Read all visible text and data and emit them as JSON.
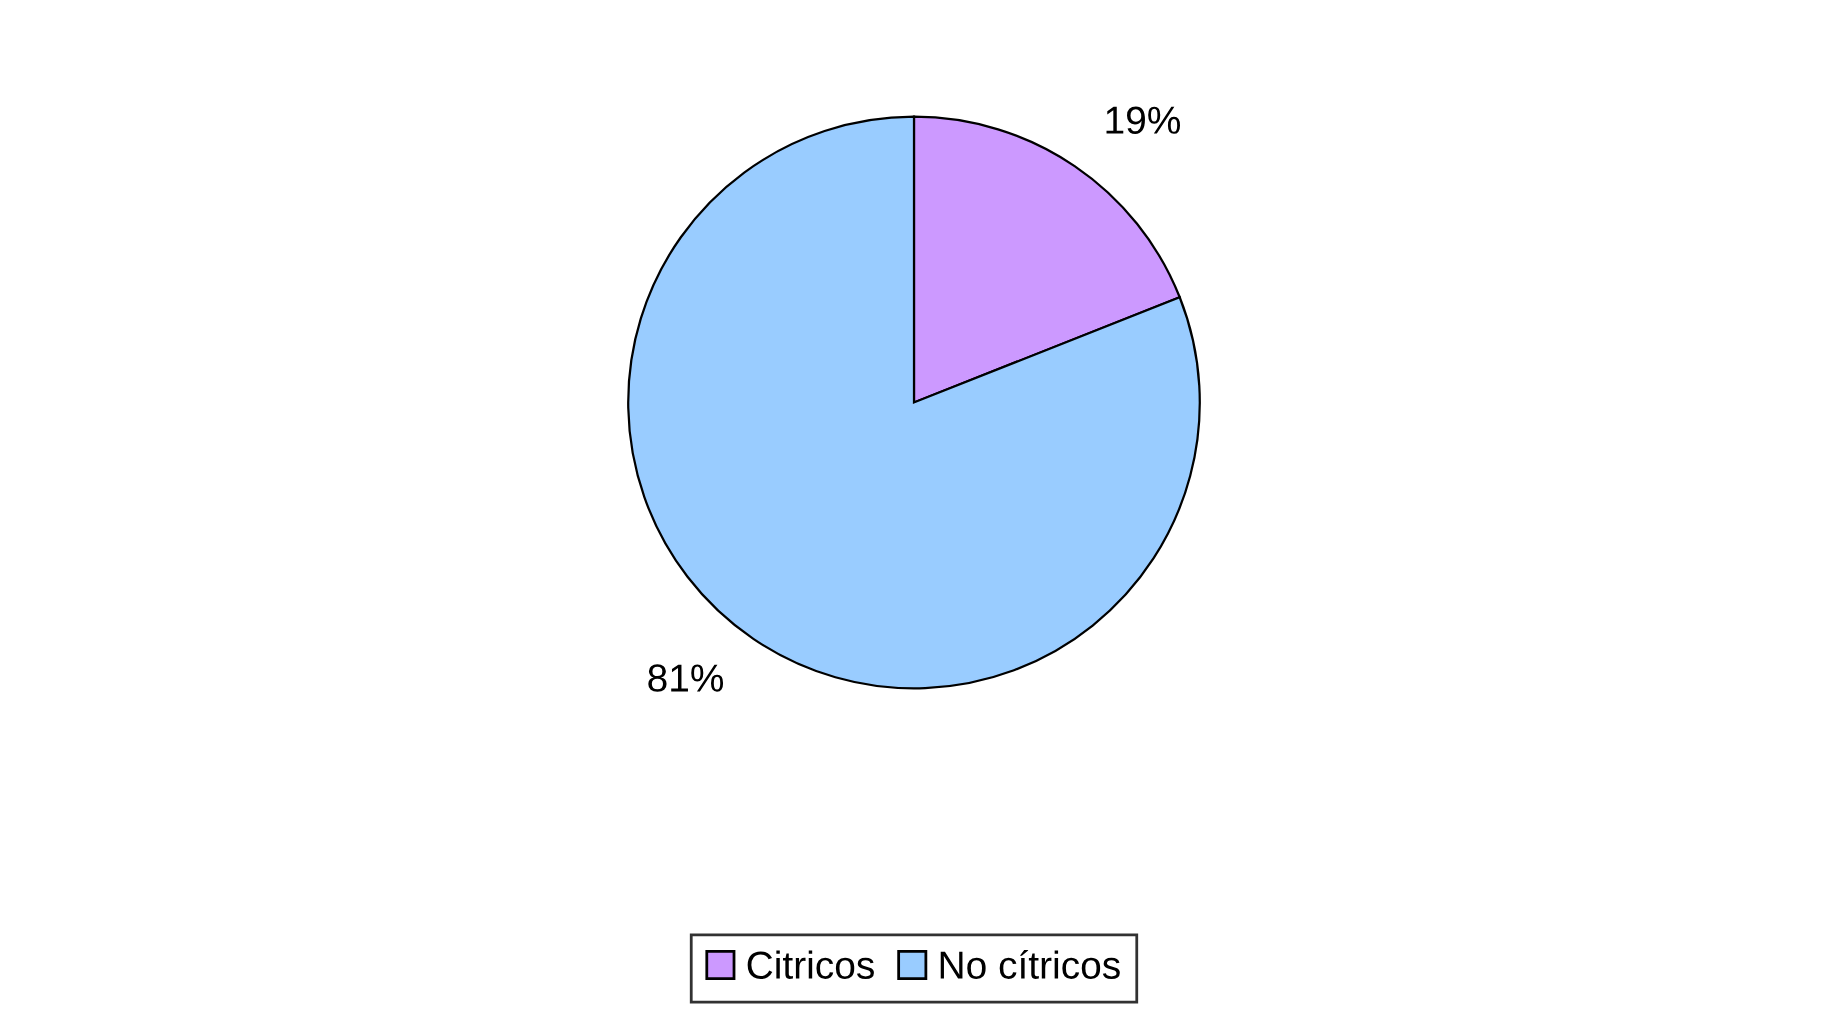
{
  "chart_data": {
    "type": "pie",
    "categories": [
      "Citricos",
      "No cítricos"
    ],
    "values": [
      19,
      81
    ],
    "colors": [
      "#cc99ff",
      "#99ccff"
    ],
    "value_labels": [
      "19%",
      "81%"
    ],
    "legend": "bottom"
  }
}
